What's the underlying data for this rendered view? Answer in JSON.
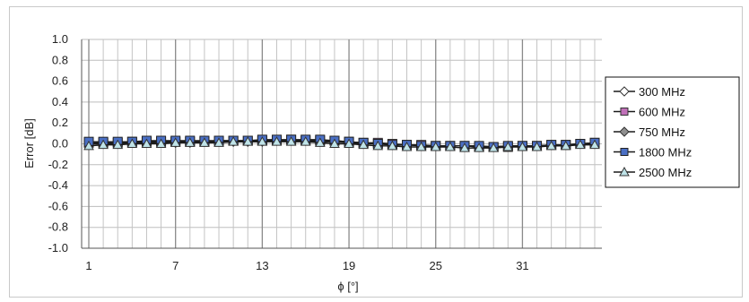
{
  "chart_data": {
    "type": "line",
    "title": "",
    "xlabel": "ϕ [°]",
    "ylabel": "Error [dB]",
    "ylim": [
      -1.0,
      1.0
    ],
    "yticks": [
      1.0,
      0.8,
      0.6,
      0.4,
      0.2,
      0.0,
      -0.2,
      -0.4,
      -0.6,
      -0.8,
      -1.0
    ],
    "ytick_labels": [
      "1.0",
      "0.8",
      "0.6",
      "0.4",
      "0.2",
      "0.0",
      "-0.2",
      "-0.4",
      "-0.6",
      "-0.8",
      "-1.0"
    ],
    "x": [
      1,
      2,
      3,
      4,
      5,
      6,
      7,
      8,
      9,
      10,
      11,
      12,
      13,
      14,
      15,
      16,
      17,
      18,
      19,
      20,
      21,
      22,
      23,
      24,
      25,
      26,
      27,
      28,
      29,
      30,
      31,
      32,
      33,
      34,
      35,
      36
    ],
    "xticks": [
      1,
      7,
      13,
      19,
      25,
      31
    ],
    "xtick_labels": [
      "1",
      "7",
      "13",
      "19",
      "25",
      "31"
    ],
    "grid": true,
    "legend_position": "right",
    "series": [
      {
        "name": "300 MHz",
        "marker": "diamond",
        "fill": "#ffffff",
        "stroke": "#333333",
        "values": [
          0.0,
          0.0,
          0.01,
          0.01,
          0.01,
          0.01,
          0.01,
          0.01,
          0.02,
          0.02,
          0.02,
          0.02,
          0.02,
          0.03,
          0.03,
          0.03,
          0.02,
          0.02,
          0.01,
          0.01,
          0.0,
          -0.01,
          -0.01,
          -0.01,
          -0.02,
          -0.02,
          -0.02,
          -0.02,
          -0.03,
          -0.02,
          -0.02,
          -0.02,
          -0.01,
          -0.01,
          0.0,
          0.0
        ]
      },
      {
        "name": "600 MHz",
        "marker": "square",
        "fill": "#c070b8",
        "stroke": "#333333",
        "values": [
          0.01,
          0.01,
          0.01,
          0.02,
          0.02,
          0.02,
          0.02,
          0.02,
          0.02,
          0.03,
          0.03,
          0.03,
          0.03,
          0.03,
          0.04,
          0.03,
          0.03,
          0.03,
          0.02,
          0.01,
          0.01,
          0.0,
          -0.01,
          -0.01,
          -0.02,
          -0.02,
          -0.02,
          -0.03,
          -0.03,
          -0.03,
          -0.02,
          -0.02,
          -0.01,
          -0.01,
          0.0,
          0.01
        ]
      },
      {
        "name": "750 MHz",
        "marker": "diamond",
        "fill": "#8f8f8f",
        "stroke": "#333333",
        "values": [
          0.0,
          0.0,
          0.0,
          0.01,
          0.01,
          0.01,
          0.01,
          0.02,
          0.02,
          0.02,
          0.02,
          0.02,
          0.03,
          0.03,
          0.03,
          0.03,
          0.02,
          0.02,
          0.01,
          0.0,
          0.0,
          -0.01,
          -0.01,
          -0.02,
          -0.02,
          -0.02,
          -0.02,
          -0.03,
          -0.03,
          -0.02,
          -0.02,
          -0.02,
          -0.01,
          -0.01,
          0.0,
          0.0
        ]
      },
      {
        "name": "1800 MHz",
        "marker": "square",
        "fill": "#4a6fc4",
        "stroke": "#222222",
        "values": [
          0.02,
          0.02,
          0.02,
          0.02,
          0.03,
          0.03,
          0.03,
          0.03,
          0.03,
          0.03,
          0.03,
          0.03,
          0.04,
          0.04,
          0.04,
          0.04,
          0.04,
          0.03,
          0.02,
          0.01,
          0.0,
          -0.01,
          -0.01,
          -0.02,
          -0.02,
          -0.02,
          -0.02,
          -0.02,
          -0.03,
          -0.02,
          -0.02,
          -0.02,
          -0.01,
          -0.01,
          0.0,
          0.01
        ]
      },
      {
        "name": "2500 MHz",
        "marker": "triangle",
        "fill": "#bfe3e8",
        "stroke": "#333333",
        "values": [
          -0.02,
          -0.01,
          -0.01,
          0.0,
          0.0,
          0.0,
          0.01,
          0.01,
          0.01,
          0.01,
          0.02,
          0.02,
          0.02,
          0.02,
          0.02,
          0.02,
          0.01,
          0.0,
          0.0,
          -0.01,
          -0.02,
          -0.02,
          -0.03,
          -0.03,
          -0.03,
          -0.03,
          -0.04,
          -0.04,
          -0.04,
          -0.03,
          -0.03,
          -0.03,
          -0.02,
          -0.02,
          -0.01,
          -0.01
        ]
      }
    ]
  }
}
